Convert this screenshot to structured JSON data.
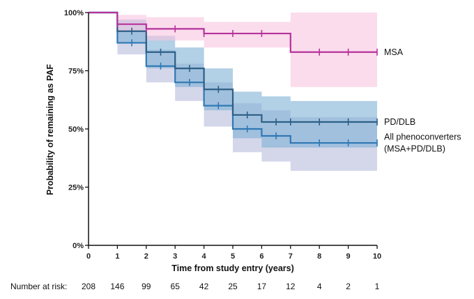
{
  "chart_data": {
    "type": "line",
    "subtype": "kaplan-meier",
    "xlabel": "Time from study entry (years)",
    "ylabel": "Probability of remaining as PAF",
    "xlim": [
      0,
      10
    ],
    "ylim": [
      0,
      100
    ],
    "x_ticks": [
      "0",
      "1",
      "2",
      "3",
      "4",
      "5",
      "6",
      "7",
      "8",
      "9",
      "10"
    ],
    "y_ticks": [
      {
        "value": 0,
        "label": "0%"
      },
      {
        "value": 25,
        "label": "25%"
      },
      {
        "value": 50,
        "label": "50%"
      },
      {
        "value": 75,
        "label": "75%"
      },
      {
        "value": 100,
        "label": "100%"
      }
    ],
    "grid": false,
    "legend_placement": "right, direct labels at line ends",
    "series": [
      {
        "name": "All phenoconverters (MSA+PD/DLB)",
        "label_lines": [
          "All phenoconverters",
          "(MSA+PD/DLB)"
        ],
        "color": "#2f78b4",
        "band_color": "#b8bcdc",
        "steps": [
          [
            0,
            100
          ],
          [
            1,
            87
          ],
          [
            2,
            77
          ],
          [
            3,
            70
          ],
          [
            4,
            60
          ],
          [
            5,
            50
          ],
          [
            6,
            47
          ],
          [
            7,
            44
          ],
          [
            10,
            44
          ]
        ],
        "ci_lower": [
          [
            0,
            100
          ],
          [
            1,
            82
          ],
          [
            2,
            70
          ],
          [
            3,
            62
          ],
          [
            4,
            51
          ],
          [
            5,
            40
          ],
          [
            6,
            36
          ],
          [
            7,
            32
          ],
          [
            10,
            32
          ]
        ],
        "ci_upper": [
          [
            0,
            100
          ],
          [
            1,
            92
          ],
          [
            2,
            84
          ],
          [
            3,
            78
          ],
          [
            4,
            70
          ],
          [
            5,
            61
          ],
          [
            6,
            58
          ],
          [
            7,
            55
          ],
          [
            10,
            55
          ]
        ],
        "censor_x": [
          1.5,
          2.5,
          3.5,
          4.5,
          5.5,
          6.5,
          8,
          9,
          10
        ]
      },
      {
        "name": "PD/DLB",
        "label_lines": [
          "PD/DLB"
        ],
        "color": "#2d5f86",
        "band_color": "#7fb0d6",
        "steps": [
          [
            0,
            100
          ],
          [
            1,
            92
          ],
          [
            2,
            83
          ],
          [
            3,
            76
          ],
          [
            4,
            67
          ],
          [
            5,
            56
          ],
          [
            6,
            53
          ],
          [
            10,
            53
          ]
        ],
        "ci_lower": [
          [
            0,
            100
          ],
          [
            1,
            87
          ],
          [
            2,
            76
          ],
          [
            3,
            68
          ],
          [
            4,
            58
          ],
          [
            5,
            46
          ],
          [
            6,
            42
          ],
          [
            10,
            42
          ]
        ],
        "ci_upper": [
          [
            0,
            100
          ],
          [
            1,
            97
          ],
          [
            2,
            90
          ],
          [
            3,
            85
          ],
          [
            4,
            76
          ],
          [
            5,
            66
          ],
          [
            6,
            64
          ],
          [
            7,
            62
          ],
          [
            10,
            61
          ]
        ],
        "censor_x": [
          1.5,
          2.5,
          3.5,
          4.5,
          5.5,
          6.5,
          7,
          8,
          9,
          10
        ]
      },
      {
        "name": "MSA",
        "label_lines": [
          "MSA"
        ],
        "color": "#b5329b",
        "band_color": "#f9c4df",
        "steps": [
          [
            0,
            100
          ],
          [
            1,
            95
          ],
          [
            2,
            93
          ],
          [
            4,
            91
          ],
          [
            7,
            83
          ],
          [
            10,
            83
          ]
        ],
        "ci_lower": [
          [
            0,
            100
          ],
          [
            1,
            92
          ],
          [
            2,
            88
          ],
          [
            4,
            85
          ],
          [
            7,
            68
          ],
          [
            10,
            68
          ]
        ],
        "ci_upper": [
          [
            0,
            100
          ],
          [
            1,
            99
          ],
          [
            2,
            98
          ],
          [
            4,
            96
          ],
          [
            7,
            100
          ],
          [
            10,
            100
          ]
        ],
        "censor_x": [
          1,
          2,
          3,
          4,
          5,
          6,
          8,
          9,
          10
        ]
      }
    ],
    "number_at_risk": {
      "label": "Number at risk:",
      "values": [
        "208",
        "146",
        "99",
        "65",
        "42",
        "25",
        "17",
        "12",
        "4",
        "2",
        "1"
      ]
    }
  }
}
